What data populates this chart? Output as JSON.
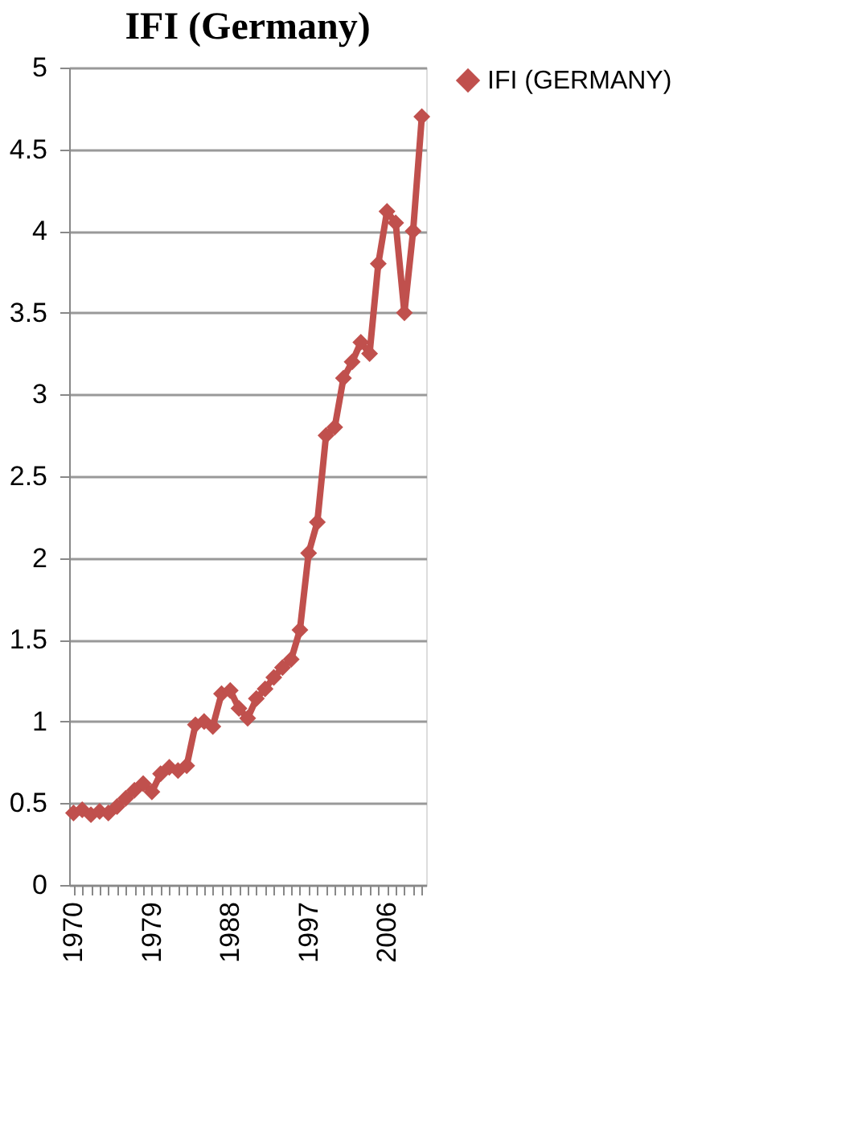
{
  "chart_data": {
    "type": "line",
    "title": "IFI (Germany)",
    "categories": [
      "1970",
      null,
      null,
      null,
      null,
      null,
      null,
      null,
      null,
      "1979",
      null,
      null,
      null,
      null,
      null,
      null,
      null,
      null,
      "1988",
      null,
      null,
      null,
      null,
      null,
      null,
      null,
      null,
      "1997",
      null,
      null,
      null,
      null,
      null,
      null,
      null,
      null,
      "2006",
      null,
      null,
      null,
      null
    ],
    "series": [
      {
        "name": "IFI (GERMANY)",
        "color": "#c0504d",
        "values": [
          0.44,
          0.46,
          0.43,
          0.45,
          0.44,
          0.48,
          0.53,
          0.58,
          0.62,
          0.57,
          0.68,
          0.72,
          0.7,
          0.73,
          0.98,
          1.0,
          0.97,
          1.17,
          1.19,
          1.08,
          1.02,
          1.14,
          1.2,
          1.27,
          1.33,
          1.38,
          1.56,
          2.03,
          2.22,
          2.75,
          2.8,
          3.1,
          3.2,
          3.32,
          3.25,
          3.8,
          4.12,
          4.05,
          3.5,
          4.0,
          4.7
        ]
      }
    ],
    "ylim": [
      0,
      5
    ],
    "yticks": [
      0,
      0.5,
      1,
      1.5,
      2,
      2.5,
      3,
      3.5,
      4,
      4.5,
      5
    ],
    "grid": "y",
    "legend": "right",
    "marker": "diamond",
    "line_style": "solid"
  }
}
